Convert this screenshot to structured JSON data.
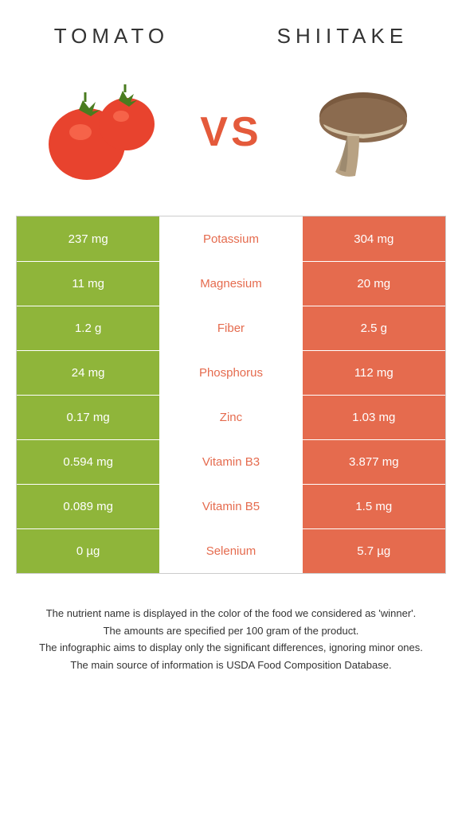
{
  "header": {
    "left_title": "TOMATO",
    "right_title": "SHIITAKE",
    "vs_label": "VS",
    "vs_color": "#e45a3b"
  },
  "colors": {
    "tomato_green": "#8fb53a",
    "shiitake_orange": "#e56b4e",
    "label_green": "#8fb53a",
    "label_orange": "#e56b4e",
    "border": "#cccccc",
    "text_dark": "#333333",
    "white": "#ffffff"
  },
  "table": {
    "rows": [
      {
        "left": "237 mg",
        "name": "Potassium",
        "right": "304 mg",
        "winner": "right"
      },
      {
        "left": "11 mg",
        "name": "Magnesium",
        "right": "20 mg",
        "winner": "right"
      },
      {
        "left": "1.2 g",
        "name": "Fiber",
        "right": "2.5 g",
        "winner": "right"
      },
      {
        "left": "24 mg",
        "name": "Phosphorus",
        "right": "112 mg",
        "winner": "right"
      },
      {
        "left": "0.17 mg",
        "name": "Zinc",
        "right": "1.03 mg",
        "winner": "right"
      },
      {
        "left": "0.594 mg",
        "name": "Vitamin B3",
        "right": "3.877 mg",
        "winner": "right"
      },
      {
        "left": "0.089 mg",
        "name": "Vitamin B5",
        "right": "1.5 mg",
        "winner": "right"
      },
      {
        "left": "0 µg",
        "name": "Selenium",
        "right": "5.7 µg",
        "winner": "right"
      }
    ]
  },
  "footnotes": [
    "The nutrient name is displayed in the color of the food we considered as 'winner'.",
    "The amounts are specified per 100 gram of the product.",
    "The infographic aims to display only the significant differences, ignoring minor ones.",
    "The main source of information is USDA Food Composition Database."
  ]
}
